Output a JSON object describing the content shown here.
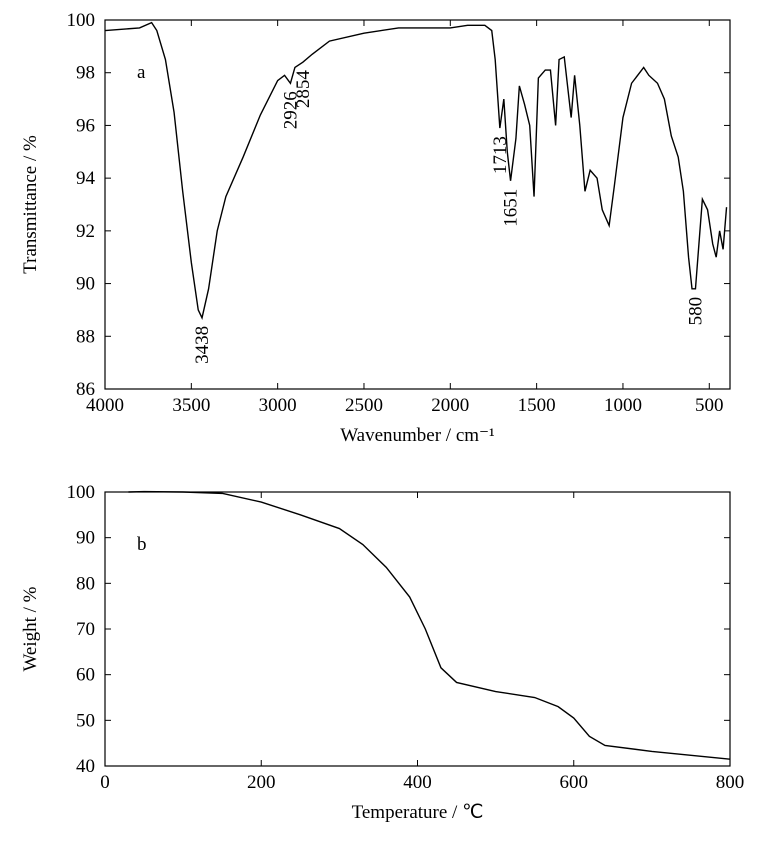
{
  "chart_data": [
    {
      "type": "line",
      "panel_label": "a",
      "xlabel": "Wavenumber / cm⁻¹",
      "ylabel": "Transmittance / %",
      "xlim": [
        4000,
        380
      ],
      "xticks": [
        4000,
        3500,
        3000,
        2500,
        2000,
        1500,
        1000,
        500
      ],
      "ylim": [
        86,
        100
      ],
      "yticks": [
        86,
        88,
        90,
        92,
        94,
        96,
        98,
        100
      ],
      "series": [
        {
          "color": "#000000",
          "x": [
            4000,
            3800,
            3730,
            3700,
            3650,
            3600,
            3550,
            3500,
            3460,
            3438,
            3400,
            3350,
            3300,
            3200,
            3100,
            3000,
            2960,
            2926,
            2900,
            2854,
            2800,
            2700,
            2500,
            2300,
            2000,
            1900,
            1800,
            1760,
            1740,
            1713,
            1690,
            1670,
            1651,
            1620,
            1600,
            1570,
            1540,
            1515,
            1490,
            1450,
            1420,
            1390,
            1370,
            1340,
            1300,
            1280,
            1250,
            1220,
            1190,
            1150,
            1120,
            1080,
            1050,
            1000,
            950,
            880,
            850,
            800,
            760,
            720,
            680,
            650,
            620,
            600,
            580,
            560,
            540,
            510,
            480,
            460,
            440,
            420,
            400
          ],
          "values": [
            99.6,
            99.7,
            99.9,
            99.6,
            98.5,
            96.5,
            93.5,
            90.8,
            89.0,
            88.7,
            89.8,
            92.0,
            93.3,
            94.8,
            96.4,
            97.7,
            97.9,
            97.6,
            98.2,
            98.4,
            98.7,
            99.2,
            99.5,
            99.7,
            99.7,
            99.8,
            99.8,
            99.6,
            98.5,
            95.9,
            97.0,
            95.0,
            93.9,
            95.5,
            97.5,
            96.8,
            96.0,
            93.3,
            97.8,
            98.1,
            98.1,
            96.0,
            98.5,
            98.6,
            96.3,
            97.9,
            96.0,
            93.5,
            94.3,
            94.0,
            92.8,
            92.2,
            93.7,
            96.3,
            97.6,
            98.2,
            97.9,
            97.6,
            97.0,
            95.6,
            94.8,
            93.5,
            91.0,
            89.8,
            89.8,
            91.5,
            93.2,
            92.8,
            91.5,
            91.0,
            92.0,
            91.3,
            92.9
          ]
        }
      ],
      "annotations": [
        {
          "text": "3438",
          "x": 3438
        },
        {
          "text": "2926",
          "x": 2926
        },
        {
          "text": "2854",
          "x": 2854
        },
        {
          "text": "1713",
          "x": 1713
        },
        {
          "text": "1651",
          "x": 1651
        },
        {
          "text": "580",
          "x": 580
        }
      ]
    },
    {
      "type": "line",
      "panel_label": "b",
      "xlabel": "Temperature / ℃",
      "ylabel": "Weight / %",
      "xlim": [
        0,
        800
      ],
      "xticks": [
        0,
        200,
        400,
        600,
        800
      ],
      "ylim": [
        40,
        100
      ],
      "yticks": [
        40,
        50,
        60,
        70,
        80,
        90,
        100
      ],
      "series": [
        {
          "color": "#000000",
          "x": [
            30,
            50,
            100,
            150,
            200,
            250,
            300,
            330,
            360,
            390,
            410,
            430,
            450,
            500,
            550,
            580,
            600,
            620,
            640,
            700,
            800
          ],
          "values": [
            100,
            100.1,
            100,
            99.7,
            97.8,
            95.0,
            92.0,
            88.5,
            83.5,
            77,
            70,
            61.5,
            58.3,
            56.3,
            55,
            53,
            50.5,
            46.5,
            44.5,
            43.2,
            41.5
          ]
        }
      ]
    }
  ]
}
